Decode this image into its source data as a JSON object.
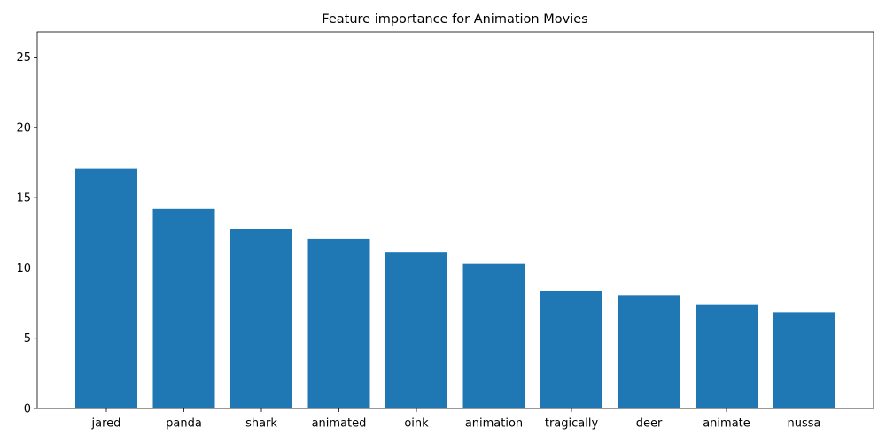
{
  "chart_data": {
    "type": "bar",
    "title": "Feature importance for Animation Movies",
    "xlabel": "",
    "ylabel": "",
    "categories": [
      "jared",
      "panda",
      "shark",
      "animated",
      "oink",
      "animation",
      "tragically",
      "deer",
      "animate",
      "nussa"
    ],
    "values": [
      17.05,
      14.2,
      12.8,
      12.05,
      11.15,
      10.3,
      8.35,
      8.05,
      7.4,
      6.85
    ],
    "ylim": [
      0,
      26.8
    ],
    "yticks": [
      0,
      5,
      10,
      15,
      20,
      25
    ],
    "grid": false,
    "legend": "none",
    "bar_color": "#1f77b4"
  }
}
